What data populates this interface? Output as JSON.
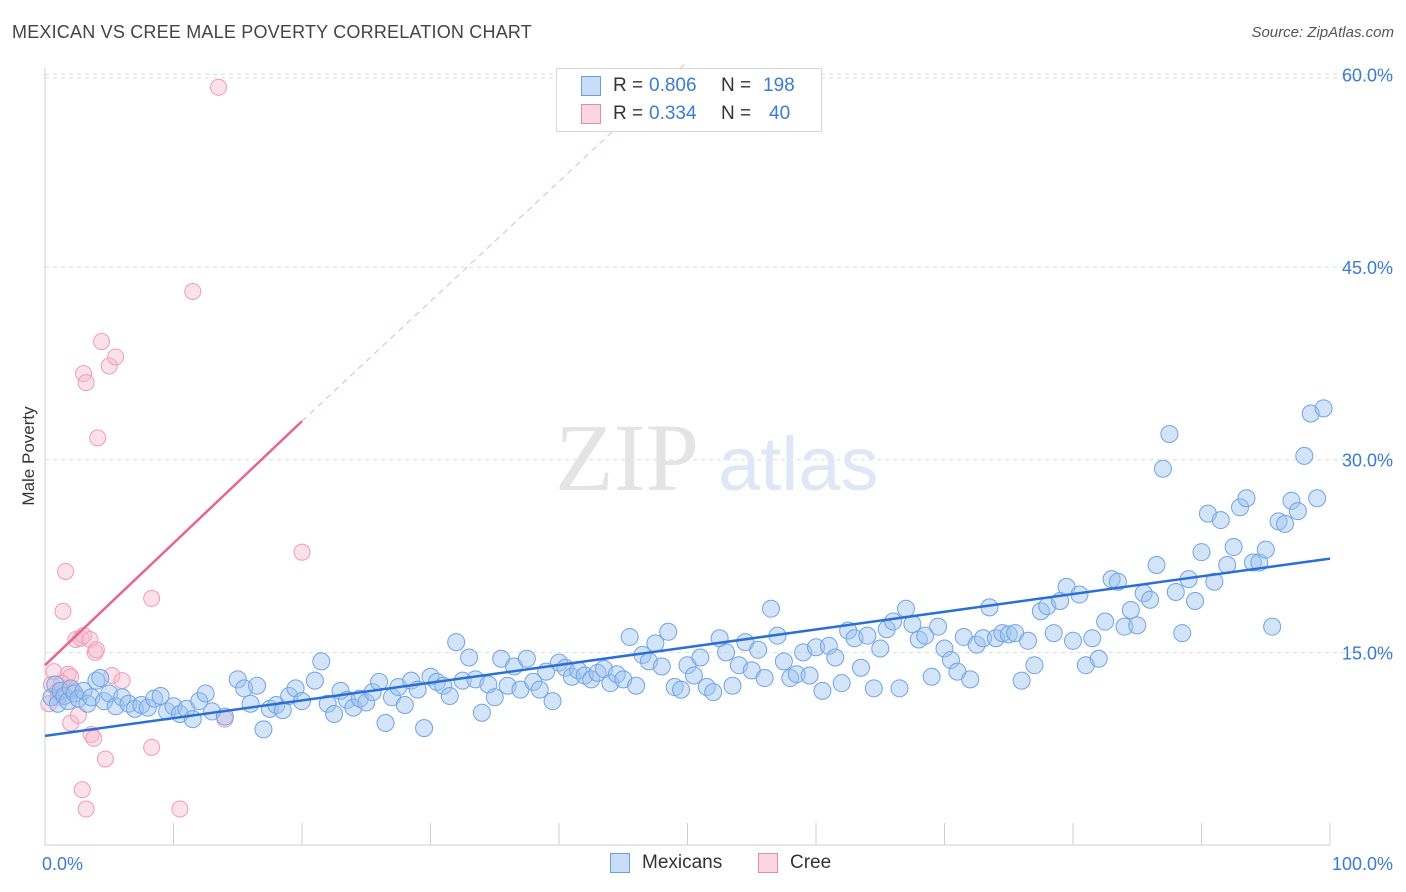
{
  "header": {
    "title": "MEXICAN VS CREE MALE POVERTY CORRELATION CHART",
    "source": "Source: ZipAtlas.com"
  },
  "watermark": {
    "zip": "ZIP",
    "atlas": "atlas"
  },
  "legend_top": [
    {
      "r_label": "R =",
      "r_value": "0.806",
      "n_label": "N =",
      "n_value": "198",
      "color": "#9ec3f0",
      "border": "#6b9de0"
    },
    {
      "r_label": "R =",
      "r_value": "0.334",
      "n_label": "N =",
      "n_value": "40",
      "color": "#f7bcd0",
      "border": "#e98aa8"
    }
  ],
  "legend_bottom": [
    {
      "label": "Mexicans",
      "color": "#9ec3f0",
      "border": "#6b9de0"
    },
    {
      "label": "Cree",
      "color": "#f7bcd0",
      "border": "#e98aa8"
    }
  ],
  "chart_data": {
    "type": "scatter",
    "ylabel": "Male Poverty",
    "xlim": [
      0,
      100
    ],
    "ylim": [
      0,
      60.5
    ],
    "x_tick_labels": [
      "0.0%",
      "100.0%"
    ],
    "y_ticks": [
      15,
      30,
      45,
      60
    ],
    "y_tick_labels": [
      "15.0%",
      "30.0%",
      "45.0%",
      "60.0%"
    ],
    "colors": {
      "mexicans": "#6fa3e8",
      "mexicans_line": "#2a6fd6",
      "cree": "#f19ab7",
      "cree_line": "#e5668f",
      "tick_label": "#3a7bd5"
    },
    "series": [
      {
        "name": "Mexicans",
        "trend": {
          "x0": 0,
          "y0": 8.5,
          "x1": 100,
          "y1": 22.3
        },
        "points": [
          [
            0.5,
            11.5
          ],
          [
            0.8,
            12.5
          ],
          [
            1.0,
            11.0
          ],
          [
            1.2,
            12.0
          ],
          [
            1.5,
            11.6
          ],
          [
            1.8,
            11.2
          ],
          [
            2.0,
            12.2
          ],
          [
            2.3,
            11.8
          ],
          [
            2.6,
            11.4
          ],
          [
            3.0,
            12.0
          ],
          [
            3.3,
            11.0
          ],
          [
            3.6,
            11.5
          ],
          [
            4.0,
            12.8
          ],
          [
            4.3,
            13.0
          ],
          [
            4.6,
            11.2
          ],
          [
            5.0,
            11.8
          ],
          [
            5.5,
            10.8
          ],
          [
            6.0,
            11.5
          ],
          [
            6.5,
            11.0
          ],
          [
            7.0,
            10.6
          ],
          [
            7.5,
            10.9
          ],
          [
            8.0,
            10.7
          ],
          [
            8.5,
            11.4
          ],
          [
            9.0,
            11.6
          ],
          [
            9.5,
            10.4
          ],
          [
            10.0,
            10.8
          ],
          [
            10.5,
            10.2
          ],
          [
            11.0,
            10.6
          ],
          [
            11.5,
            9.8
          ],
          [
            12.0,
            11.2
          ],
          [
            12.5,
            11.8
          ],
          [
            13.0,
            10.4
          ],
          [
            14.0,
            10.0
          ],
          [
            15.0,
            12.9
          ],
          [
            15.5,
            12.2
          ],
          [
            16.0,
            11.0
          ],
          [
            16.5,
            12.4
          ],
          [
            17.0,
            9.0
          ],
          [
            17.5,
            10.6
          ],
          [
            18.0,
            10.9
          ],
          [
            18.5,
            10.5
          ],
          [
            19.0,
            11.6
          ],
          [
            19.5,
            12.2
          ],
          [
            20.0,
            11.2
          ],
          [
            21.0,
            12.8
          ],
          [
            21.5,
            14.3
          ],
          [
            22.0,
            11.0
          ],
          [
            22.5,
            10.2
          ],
          [
            23.0,
            12.0
          ],
          [
            23.5,
            11.3
          ],
          [
            24.0,
            10.7
          ],
          [
            24.5,
            11.4
          ],
          [
            25.0,
            11.1
          ],
          [
            25.5,
            11.9
          ],
          [
            26.0,
            12.7
          ],
          [
            26.5,
            9.5
          ],
          [
            27.0,
            11.5
          ],
          [
            27.5,
            12.3
          ],
          [
            28.0,
            10.9
          ],
          [
            28.5,
            12.8
          ],
          [
            29.0,
            12.1
          ],
          [
            29.5,
            9.1
          ],
          [
            30.0,
            13.1
          ],
          [
            30.5,
            12.7
          ],
          [
            31.0,
            12.4
          ],
          [
            31.5,
            11.6
          ],
          [
            32.0,
            15.8
          ],
          [
            32.5,
            12.8
          ],
          [
            33.0,
            14.6
          ],
          [
            33.5,
            12.9
          ],
          [
            34.0,
            10.3
          ],
          [
            34.5,
            12.5
          ],
          [
            35.0,
            11.5
          ],
          [
            35.5,
            14.5
          ],
          [
            36.0,
            12.4
          ],
          [
            36.5,
            13.9
          ],
          [
            37.0,
            12.1
          ],
          [
            37.5,
            14.5
          ],
          [
            38.0,
            12.7
          ],
          [
            38.5,
            12.1
          ],
          [
            39.0,
            13.5
          ],
          [
            39.5,
            11.2
          ],
          [
            40.0,
            14.2
          ],
          [
            40.5,
            13.8
          ],
          [
            41.0,
            13.1
          ],
          [
            41.5,
            13.6
          ],
          [
            42.0,
            13.2
          ],
          [
            42.5,
            12.9
          ],
          [
            43.0,
            13.4
          ],
          [
            43.5,
            13.7
          ],
          [
            44.0,
            12.6
          ],
          [
            44.5,
            13.3
          ],
          [
            45.0,
            12.9
          ],
          [
            45.5,
            16.2
          ],
          [
            46.0,
            12.4
          ],
          [
            46.5,
            14.8
          ],
          [
            47.0,
            14.3
          ],
          [
            47.5,
            15.7
          ],
          [
            48.0,
            13.9
          ],
          [
            48.5,
            16.6
          ],
          [
            49.0,
            12.3
          ],
          [
            49.5,
            12.1
          ],
          [
            50.0,
            14.0
          ],
          [
            50.5,
            13.2
          ],
          [
            51.0,
            14.6
          ],
          [
            51.5,
            12.3
          ],
          [
            52.0,
            11.9
          ],
          [
            52.5,
            16.1
          ],
          [
            53.0,
            15.0
          ],
          [
            53.5,
            12.4
          ],
          [
            54.0,
            14.0
          ],
          [
            54.5,
            15.8
          ],
          [
            55.0,
            13.6
          ],
          [
            55.5,
            15.2
          ],
          [
            56.0,
            13.0
          ],
          [
            56.5,
            18.4
          ],
          [
            57.0,
            16.3
          ],
          [
            57.5,
            14.3
          ],
          [
            58.0,
            13.0
          ],
          [
            58.5,
            13.3
          ],
          [
            59.0,
            15.0
          ],
          [
            59.5,
            13.2
          ],
          [
            60.0,
            15.4
          ],
          [
            60.5,
            12.0
          ],
          [
            61.0,
            15.5
          ],
          [
            61.5,
            14.6
          ],
          [
            62.0,
            12.6
          ],
          [
            62.5,
            16.7
          ],
          [
            63.0,
            16.1
          ],
          [
            63.5,
            13.8
          ],
          [
            64.0,
            16.3
          ],
          [
            64.5,
            12.2
          ],
          [
            65.0,
            15.3
          ],
          [
            65.5,
            16.8
          ],
          [
            66.0,
            17.4
          ],
          [
            66.5,
            12.2
          ],
          [
            67.0,
            18.4
          ],
          [
            67.5,
            17.2
          ],
          [
            68.0,
            16.0
          ],
          [
            68.5,
            16.3
          ],
          [
            69.0,
            13.1
          ],
          [
            69.5,
            17.0
          ],
          [
            70.0,
            15.3
          ],
          [
            70.5,
            14.4
          ],
          [
            71.0,
            13.5
          ],
          [
            71.5,
            16.2
          ],
          [
            72.0,
            12.9
          ],
          [
            72.5,
            15.6
          ],
          [
            73.0,
            16.1
          ],
          [
            73.5,
            18.5
          ],
          [
            74.0,
            16.1
          ],
          [
            74.5,
            16.5
          ],
          [
            75.0,
            16.4
          ],
          [
            75.5,
            16.5
          ],
          [
            76.0,
            12.8
          ],
          [
            76.5,
            15.9
          ],
          [
            77.0,
            14.0
          ],
          [
            77.5,
            18.2
          ],
          [
            78.0,
            18.6
          ],
          [
            78.5,
            16.5
          ],
          [
            79.0,
            19.0
          ],
          [
            79.5,
            20.1
          ],
          [
            80.0,
            15.9
          ],
          [
            80.5,
            19.5
          ],
          [
            81.0,
            14.0
          ],
          [
            81.5,
            16.1
          ],
          [
            82.0,
            14.5
          ],
          [
            82.5,
            17.4
          ],
          [
            83.0,
            20.7
          ],
          [
            83.5,
            20.5
          ],
          [
            84.0,
            17.0
          ],
          [
            84.5,
            18.3
          ],
          [
            85.0,
            17.1
          ],
          [
            85.5,
            19.6
          ],
          [
            86.0,
            19.1
          ],
          [
            86.5,
            21.8
          ],
          [
            87.0,
            29.3
          ],
          [
            87.5,
            32.0
          ],
          [
            88.0,
            19.7
          ],
          [
            88.5,
            16.5
          ],
          [
            89.0,
            20.7
          ],
          [
            89.5,
            19.0
          ],
          [
            90.0,
            22.8
          ],
          [
            90.5,
            25.8
          ],
          [
            91.0,
            20.5
          ],
          [
            91.5,
            25.3
          ],
          [
            92.0,
            21.8
          ],
          [
            92.5,
            23.2
          ],
          [
            93.0,
            26.3
          ],
          [
            93.5,
            27.0
          ],
          [
            94.0,
            22.0
          ],
          [
            94.5,
            22.0
          ],
          [
            95.0,
            23.0
          ],
          [
            95.5,
            17.0
          ],
          [
            96.0,
            25.2
          ],
          [
            96.5,
            25.0
          ],
          [
            97.0,
            26.8
          ],
          [
            97.5,
            26.0
          ],
          [
            98.0,
            30.3
          ],
          [
            98.5,
            33.6
          ],
          [
            99.0,
            27.0
          ],
          [
            99.5,
            34.0
          ]
        ]
      },
      {
        "name": "Cree",
        "trend": {
          "x0": 0,
          "y0": 14.0,
          "x1": 20,
          "y1": 33.0,
          "dash_x1": 50,
          "dash_y1": 61.0
        },
        "points": [
          [
            0.3,
            11.0
          ],
          [
            0.5,
            12.5
          ],
          [
            0.7,
            13.5
          ],
          [
            1.0,
            12.0
          ],
          [
            1.2,
            11.8
          ],
          [
            1.4,
            18.2
          ],
          [
            1.6,
            21.3
          ],
          [
            1.8,
            13.3
          ],
          [
            2.0,
            9.5
          ],
          [
            2.0,
            13.1
          ],
          [
            2.2,
            12.0
          ],
          [
            2.4,
            16.0
          ],
          [
            2.6,
            10.1
          ],
          [
            2.8,
            16.1
          ],
          [
            3.0,
            16.3
          ],
          [
            2.9,
            4.3
          ],
          [
            3.2,
            2.8
          ],
          [
            3.0,
            36.7
          ],
          [
            3.2,
            36.0
          ],
          [
            3.5,
            16.0
          ],
          [
            3.6,
            8.6
          ],
          [
            3.8,
            8.3
          ],
          [
            3.9,
            15.0
          ],
          [
            4.0,
            15.2
          ],
          [
            4.1,
            31.7
          ],
          [
            4.4,
            39.2
          ],
          [
            4.7,
            6.7
          ],
          [
            5.0,
            37.3
          ],
          [
            5.2,
            13.2
          ],
          [
            5.5,
            38.0
          ],
          [
            6.0,
            12.8
          ],
          [
            8.3,
            19.2
          ],
          [
            8.3,
            7.6
          ],
          [
            10.5,
            2.8
          ],
          [
            11.5,
            43.1
          ],
          [
            13.5,
            59.0
          ],
          [
            14.0,
            9.8
          ],
          [
            20.0,
            22.8
          ],
          [
            1.0,
            11.5
          ],
          [
            1.3,
            12.6
          ]
        ]
      }
    ]
  }
}
